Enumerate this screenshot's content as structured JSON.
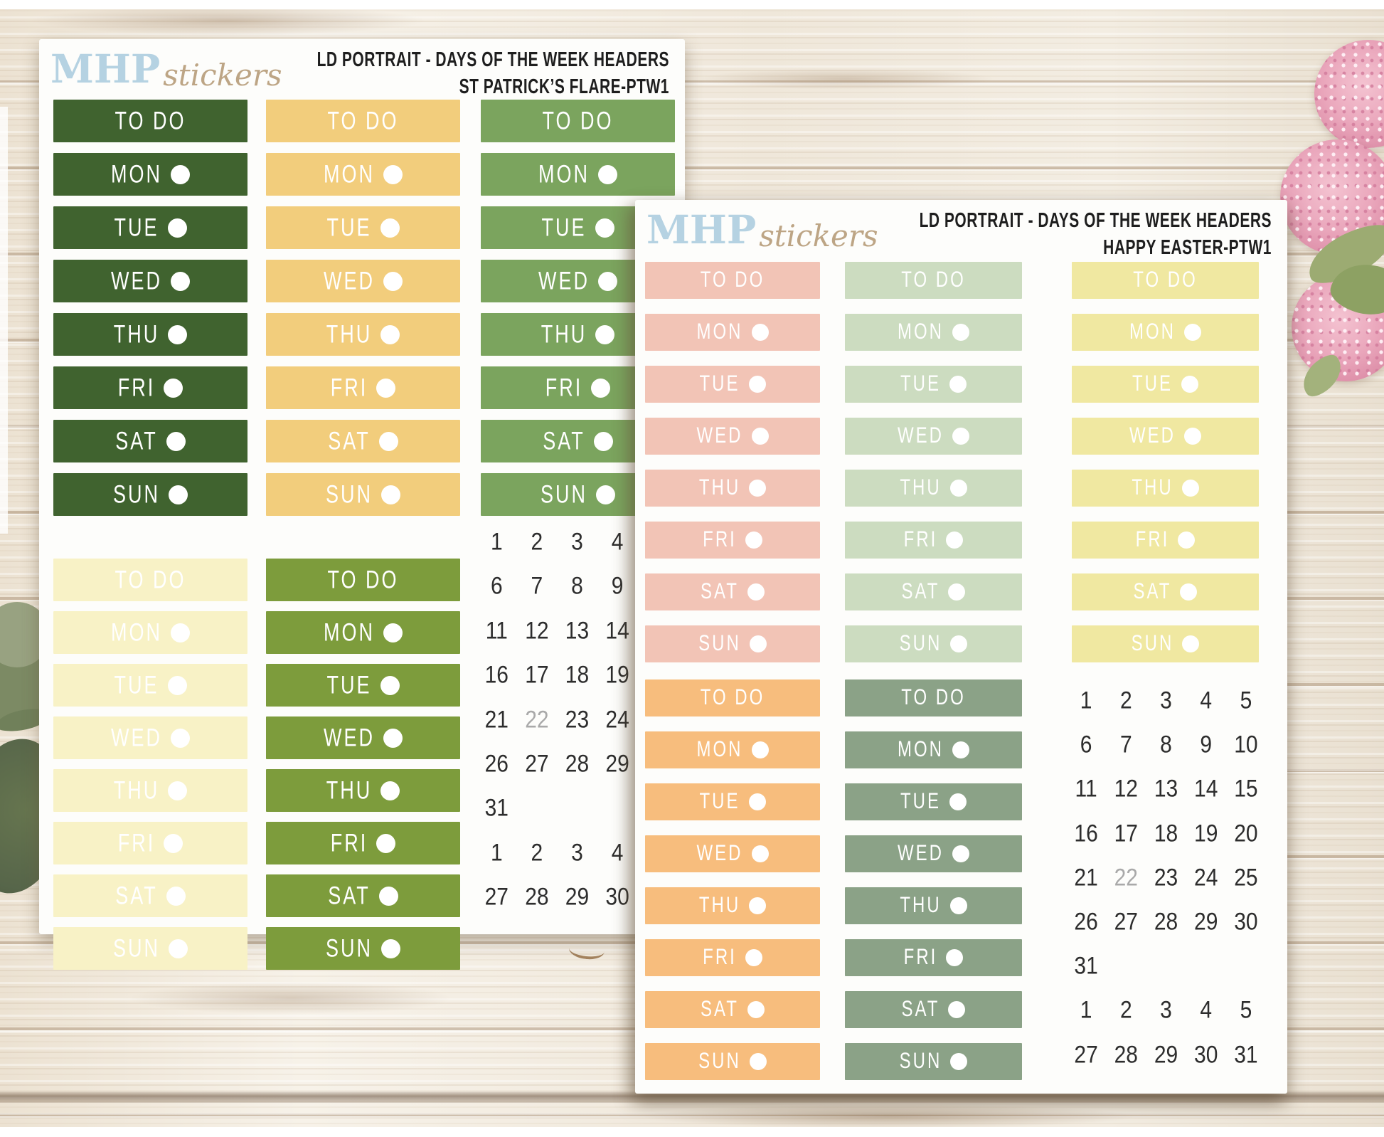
{
  "brand": {
    "logo_main": "MHP",
    "logo_script": "stickers",
    "logo_main_color": "#b5d2e2",
    "logo_script_color": "#bda585"
  },
  "day_labels": [
    {
      "label": "TO DO",
      "dot": false
    },
    {
      "label": "MON",
      "dot": true
    },
    {
      "label": "TUE",
      "dot": true
    },
    {
      "label": "WED",
      "dot": true
    },
    {
      "label": "THU",
      "dot": true
    },
    {
      "label": "FRI",
      "dot": true
    },
    {
      "label": "SAT",
      "dot": true
    },
    {
      "label": "SUN",
      "dot": true
    }
  ],
  "date_rows": [
    [
      "1",
      "2",
      "3",
      "4",
      "5"
    ],
    [
      "6",
      "7",
      "8",
      "9",
      "10"
    ],
    [
      "11",
      "12",
      "13",
      "14",
      "15"
    ],
    [
      "16",
      "17",
      "18",
      "19",
      "20"
    ],
    [
      "21",
      "22",
      "23",
      "24",
      "25"
    ],
    [
      "26",
      "27",
      "28",
      "29",
      "30"
    ],
    [
      "31",
      "",
      "",
      "",
      ""
    ],
    [
      "1",
      "2",
      "3",
      "4",
      "5"
    ],
    [
      "27",
      "28",
      "29",
      "30",
      "31"
    ]
  ],
  "muted_date": "22",
  "sheets": [
    {
      "id": "st-patricks-flare",
      "header_line1": "LD PORTRAIT - DAYS OF THE WEEK HEADERS",
      "header_line2": "ST PATRICK’S FLARE-PTW1",
      "columns": [
        {
          "slot": "t1",
          "color": "#40632f"
        },
        {
          "slot": "t2",
          "color": "#f2cd7c"
        },
        {
          "slot": "t3",
          "color": "#7ba45e"
        },
        {
          "slot": "b1",
          "color": "#f8f2c6"
        },
        {
          "slot": "b2",
          "color": "#7d9c3c"
        }
      ]
    },
    {
      "id": "happy-easter",
      "header_line1": "LD PORTRAIT - DAYS OF THE WEEK HEADERS",
      "header_line2": "HAPPY EASTER-PTW1",
      "columns": [
        {
          "slot": "t1",
          "color": "#f2c4b6"
        },
        {
          "slot": "t2",
          "color": "#ccdcc0"
        },
        {
          "slot": "t3",
          "color": "#f0e8a1"
        },
        {
          "slot": "b1",
          "color": "#f7bd7d"
        },
        {
          "slot": "b2",
          "color": "#8ba287"
        }
      ]
    }
  ]
}
